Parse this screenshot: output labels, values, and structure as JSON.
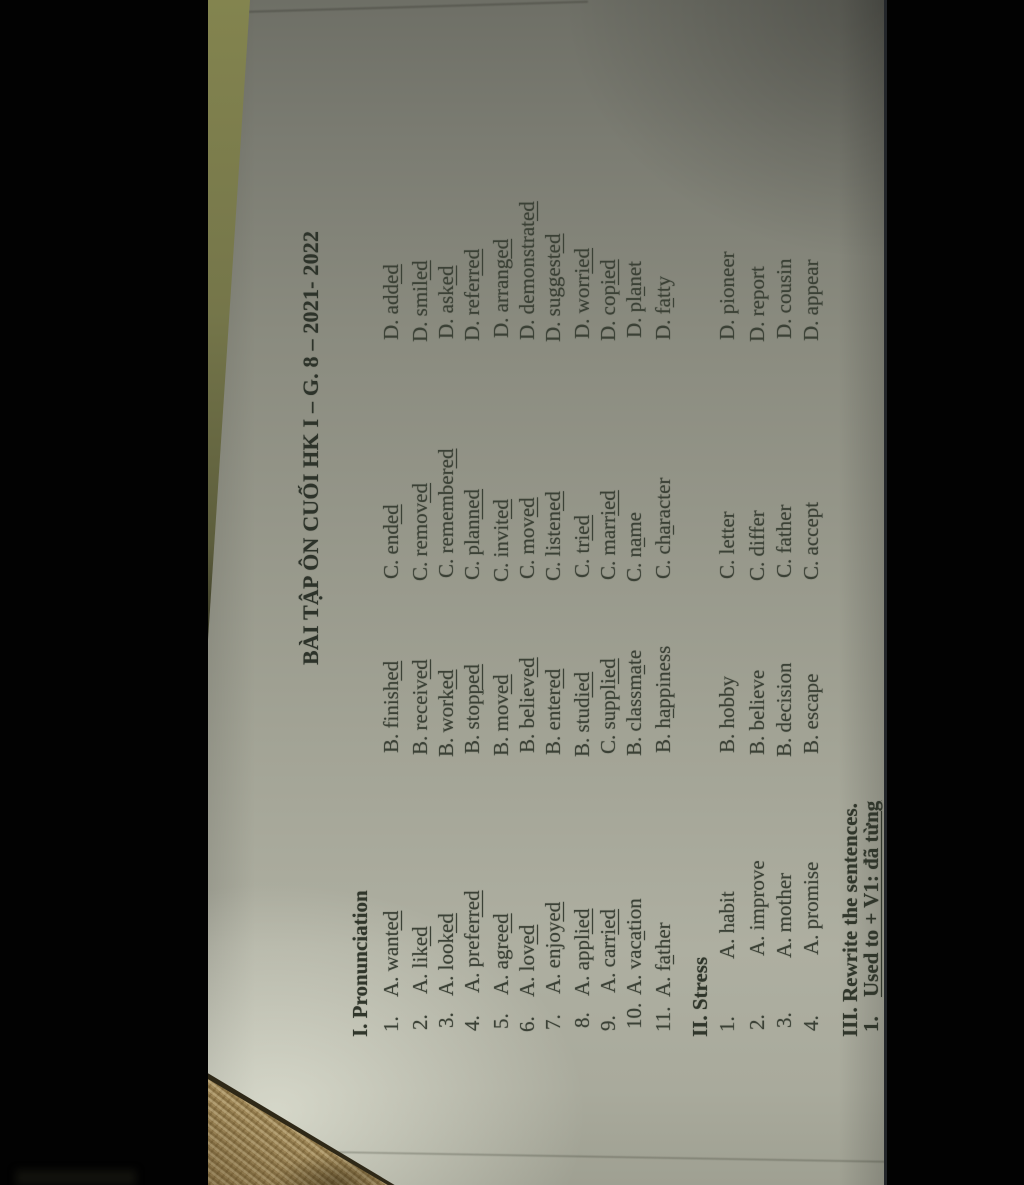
{
  "colors": {
    "background": "#020202",
    "paper_dark_top": "#6e6f66",
    "paper_mid": "#96978a",
    "paper_light_bottom": "#aeafa1",
    "paper_highlight": "#e8eadb",
    "ink": "#3b4136",
    "ink_bold": "#2d332a",
    "fabric": "#a8905f",
    "fabric_edge": "#2e2817",
    "table_sliver": "#83844f"
  },
  "document": {
    "title": "BÀI TẬP ÔN CUỐI HK I – G. 8 – 2021- 2022",
    "sections": [
      {
        "id": "pronunciation",
        "heading": "I. Pronunciation",
        "type": "options",
        "items": [
          {
            "num": "1.",
            "options": [
              {
                "label": "A.",
                "pre": "want",
                "u": "ed",
                "post": ""
              },
              {
                "label": "B.",
                "pre": "finish",
                "u": "ed",
                "post": ""
              },
              {
                "label": "C.",
                "pre": "end",
                "u": "ed",
                "post": ""
              },
              {
                "label": "D.",
                "pre": "add",
                "u": "ed",
                "post": ""
              }
            ]
          },
          {
            "num": "2.",
            "options": [
              {
                "label": "A.",
                "pre": "lik",
                "u": "ed",
                "post": ""
              },
              {
                "label": "B.",
                "pre": "receiv",
                "u": "ed",
                "post": ""
              },
              {
                "label": "C.",
                "pre": "remov",
                "u": "ed",
                "post": ""
              },
              {
                "label": "D.",
                "pre": "smil",
                "u": "ed",
                "post": ""
              }
            ]
          },
          {
            "num": "3.",
            "options": [
              {
                "label": "A.",
                "pre": "look",
                "u": "ed",
                "post": ""
              },
              {
                "label": "B.",
                "pre": "work",
                "u": "ed",
                "post": ""
              },
              {
                "label": "C.",
                "pre": "remember",
                "u": "ed",
                "post": ""
              },
              {
                "label": "D.",
                "pre": "ask",
                "u": "ed",
                "post": ""
              }
            ]
          },
          {
            "num": "4.",
            "options": [
              {
                "label": "A.",
                "pre": "prefer",
                "u": "red",
                "post": ""
              },
              {
                "label": "B.",
                "pre": "stop",
                "u": "ped",
                "post": ""
              },
              {
                "label": "C.",
                "pre": "plan",
                "u": "ned",
                "post": ""
              },
              {
                "label": "D.",
                "pre": "refer",
                "u": "red",
                "post": ""
              }
            ]
          },
          {
            "num": "5.",
            "options": [
              {
                "label": "A.",
                "pre": "agre",
                "u": "ed",
                "post": ""
              },
              {
                "label": "B.",
                "pre": "mov",
                "u": "ed",
                "post": ""
              },
              {
                "label": "C.",
                "pre": "invit",
                "u": "ed",
                "post": ""
              },
              {
                "label": "D.",
                "pre": "arrang",
                "u": "ed",
                "post": ""
              }
            ]
          },
          {
            "num": "6.",
            "options": [
              {
                "label": "A.",
                "pre": "lov",
                "u": "ed",
                "post": ""
              },
              {
                "label": "B.",
                "pre": "believ",
                "u": "ed",
                "post": ""
              },
              {
                "label": "C.",
                "pre": "mov",
                "u": "ed",
                "post": ""
              },
              {
                "label": "D.",
                "pre": "demonstrat",
                "u": "ed",
                "post": ""
              }
            ]
          },
          {
            "num": "7.",
            "options": [
              {
                "label": "A.",
                "pre": "enjoy",
                "u": "ed",
                "post": ""
              },
              {
                "label": "B.",
                "pre": "enter",
                "u": "ed",
                "post": ""
              },
              {
                "label": "C.",
                "pre": "listen",
                "u": "ed",
                "post": ""
              },
              {
                "label": "D.",
                "pre": "suggest",
                "u": "ed",
                "post": ""
              }
            ]
          },
          {
            "num": "8.",
            "options": [
              {
                "label": "A.",
                "pre": "appl",
                "u": "ied",
                "post": ""
              },
              {
                "label": "B.",
                "pre": "stud",
                "u": "ied",
                "post": ""
              },
              {
                "label": "C.",
                "pre": "tr",
                "u": "ied",
                "post": ""
              },
              {
                "label": "D.",
                "pre": "worr",
                "u": "ied",
                "post": ""
              }
            ]
          },
          {
            "num": "9.",
            "options": [
              {
                "label": "A.",
                "pre": "carr",
                "u": "ied",
                "post": ""
              },
              {
                "label": "C.",
                "pre": "suppl",
                "u": "ied",
                "post": ""
              },
              {
                "label": "C.",
                "pre": "marr",
                "u": "ied",
                "post": ""
              },
              {
                "label": "D.",
                "pre": "cop",
                "u": "ied",
                "post": ""
              }
            ]
          },
          {
            "num": "10.",
            "options": [
              {
                "label": "A.",
                "pre": "vac",
                "u": "a",
                "post": "tion"
              },
              {
                "label": "B.",
                "pre": "classm",
                "u": "a",
                "post": "te"
              },
              {
                "label": "C.",
                "pre": "n",
                "u": "a",
                "post": "me"
              },
              {
                "label": "D.",
                "pre": "pl",
                "u": "a",
                "post": "net"
              }
            ]
          },
          {
            "num": "11.",
            "options": [
              {
                "label": "A.",
                "pre": "f",
                "u": "a",
                "post": "ther"
              },
              {
                "label": "B.",
                "pre": "h",
                "u": "a",
                "post": "ppiness"
              },
              {
                "label": "C.",
                "pre": "ch",
                "u": "a",
                "post": "racter"
              },
              {
                "label": "D.",
                "pre": "f",
                "u": "a",
                "post": "tty"
              }
            ]
          }
        ]
      },
      {
        "id": "stress",
        "heading": "II. Stress",
        "type": "options",
        "items": [
          {
            "num": "1.",
            "options": [
              {
                "label": "A.",
                "pre": "habit",
                "u": "",
                "post": ""
              },
              {
                "label": "B.",
                "pre": "hobby",
                "u": "",
                "post": ""
              },
              {
                "label": "C.",
                "pre": "letter",
                "u": "",
                "post": ""
              },
              {
                "label": "D.",
                "pre": "pioneer",
                "u": "",
                "post": ""
              }
            ]
          },
          {
            "num": "2.",
            "options": [
              {
                "label": "A.",
                "pre": "improve",
                "u": "",
                "post": ""
              },
              {
                "label": "B.",
                "pre": "believe",
                "u": "",
                "post": ""
              },
              {
                "label": "C.",
                "pre": "differ",
                "u": "",
                "post": ""
              },
              {
                "label": "D.",
                "pre": "report",
                "u": "",
                "post": ""
              }
            ]
          },
          {
            "num": "3.",
            "options": [
              {
                "label": "A.",
                "pre": "mother",
                "u": "",
                "post": ""
              },
              {
                "label": "B.",
                "pre": "decision",
                "u": "",
                "post": ""
              },
              {
                "label": "C.",
                "pre": "father",
                "u": "",
                "post": ""
              },
              {
                "label": "D.",
                "pre": "cousin",
                "u": "",
                "post": ""
              }
            ]
          },
          {
            "num": "4.",
            "options": [
              {
                "label": "A.",
                "pre": "promise",
                "u": "",
                "post": ""
              },
              {
                "label": "B.",
                "pre": "escape",
                "u": "",
                "post": ""
              },
              {
                "label": "C.",
                "pre": "accept",
                "u": "",
                "post": ""
              },
              {
                "label": "D.",
                "pre": "appear",
                "u": "",
                "post": ""
              }
            ]
          }
        ]
      },
      {
        "id": "rewrite",
        "heading": "III. Rewrite the sentences.",
        "type": "text",
        "items": [
          {
            "num": "1.",
            "pre": "",
            "u": "Used to + V1: đã từng",
            "post": ""
          }
        ]
      }
    ]
  }
}
